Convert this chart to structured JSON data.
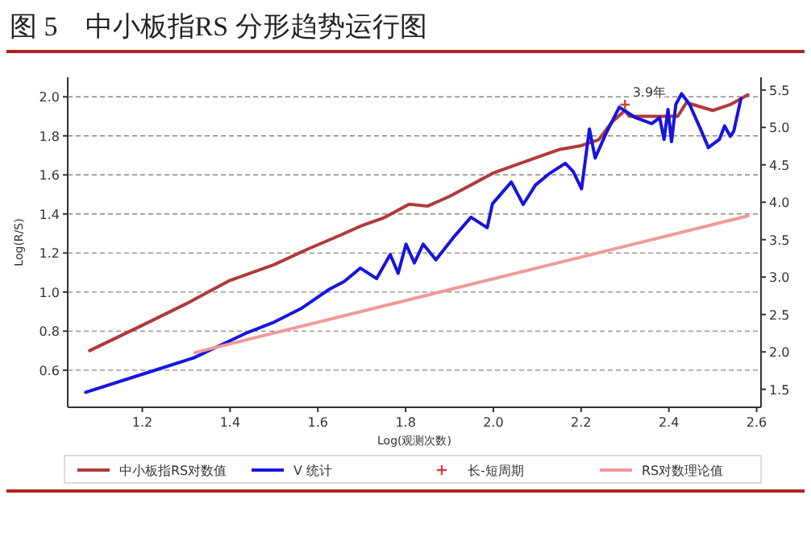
{
  "chart_data": {
    "type": "line",
    "title": "图 5　中小板指RS 分形趋势运行图",
    "xlabel": "Log(观测次数)",
    "ylabel": "Log(R/S)",
    "xlim": [
      1.03,
      2.61
    ],
    "xticks": [
      1.2,
      1.4,
      1.6,
      1.8,
      {
        "value": 2,
        "label": "2.0"
      },
      2.2,
      2.4,
      2.6
    ],
    "ylim": [
      0.41,
      2.1
    ],
    "yticks": [
      0.6,
      0.8,
      {
        "value": 1,
        "label": "1.0"
      },
      1.2,
      1.4,
      1.6,
      1.8,
      {
        "value": 2,
        "label": "2.0"
      }
    ],
    "y2lim": [
      1.26,
      5.67
    ],
    "y2ticks": [
      1.5,
      {
        "value": 2,
        "label": "2.0"
      },
      2.5,
      {
        "value": 3,
        "label": "3.0"
      },
      3.5,
      {
        "value": 4,
        "label": "4.0"
      },
      4.5,
      {
        "value": 5,
        "label": "5.0"
      },
      5.5
    ],
    "grid": "y",
    "legend": "bottom",
    "line_style": "solid",
    "annotations": [
      {
        "text": "3.9年",
        "x": 2.31,
        "y": 1.96
      }
    ],
    "series": [
      {
        "name": "中小板指RS对数值",
        "color": "#b03a3a",
        "x": [
          1.08,
          1.2,
          1.3,
          1.4,
          1.5,
          1.577,
          1.65,
          1.7,
          1.75,
          1.808,
          1.85,
          1.9,
          1.95,
          2.0,
          2.05,
          2.1,
          2.15,
          2.2,
          2.24,
          2.27,
          2.3,
          2.31,
          2.35,
          2.42,
          2.44,
          2.5,
          2.54,
          2.58
        ],
        "values": [
          0.7,
          0.83,
          0.94,
          1.06,
          1.14,
          1.22,
          1.29,
          1.34,
          1.38,
          1.45,
          1.44,
          1.49,
          1.55,
          1.61,
          1.65,
          1.69,
          1.73,
          1.75,
          1.78,
          1.87,
          1.93,
          1.9,
          1.9,
          1.9,
          1.97,
          1.93,
          1.96,
          2.01
        ]
      },
      {
        "name": "V 统计",
        "color": "#1515e0",
        "axis": "y2",
        "x": [
          1.071,
          1.194,
          1.317,
          1.44,
          1.501,
          1.562,
          1.624,
          1.66,
          1.697,
          1.734,
          1.765,
          1.783,
          1.801,
          1.82,
          1.84,
          1.869,
          1.912,
          1.949,
          1.986,
          1.998,
          2.041,
          2.068,
          2.096,
          2.127,
          2.164,
          2.182,
          2.201,
          2.219,
          2.232,
          2.256,
          2.287,
          2.324,
          2.361,
          2.379,
          2.389,
          2.398,
          2.406,
          2.416,
          2.429,
          2.447,
          2.472,
          2.49,
          2.515,
          2.527,
          2.54,
          2.548,
          2.564
        ],
        "values": [
          1.46,
          1.69,
          1.92,
          2.26,
          2.4,
          2.58,
          2.83,
          2.94,
          3.12,
          2.98,
          3.3,
          3.05,
          3.44,
          3.19,
          3.44,
          3.23,
          3.55,
          3.8,
          3.66,
          3.98,
          4.27,
          3.97,
          4.23,
          4.38,
          4.52,
          4.41,
          4.18,
          4.98,
          4.59,
          4.91,
          5.27,
          5.13,
          5.05,
          5.13,
          4.84,
          5.24,
          4.81,
          5.31,
          5.45,
          5.31,
          4.98,
          4.73,
          4.84,
          5.02,
          4.88,
          4.95,
          5.38
        ]
      },
      {
        "name": "长-短周期",
        "type": "scatter",
        "marker": "cross",
        "color": "#d04040",
        "x": [
          2.3
        ],
        "values": [
          1.96
        ]
      },
      {
        "name": "RS对数理论值",
        "color": "#f09a9a",
        "x": [
          1.32,
          2.58
        ],
        "values": [
          0.69,
          1.39
        ]
      }
    ]
  }
}
